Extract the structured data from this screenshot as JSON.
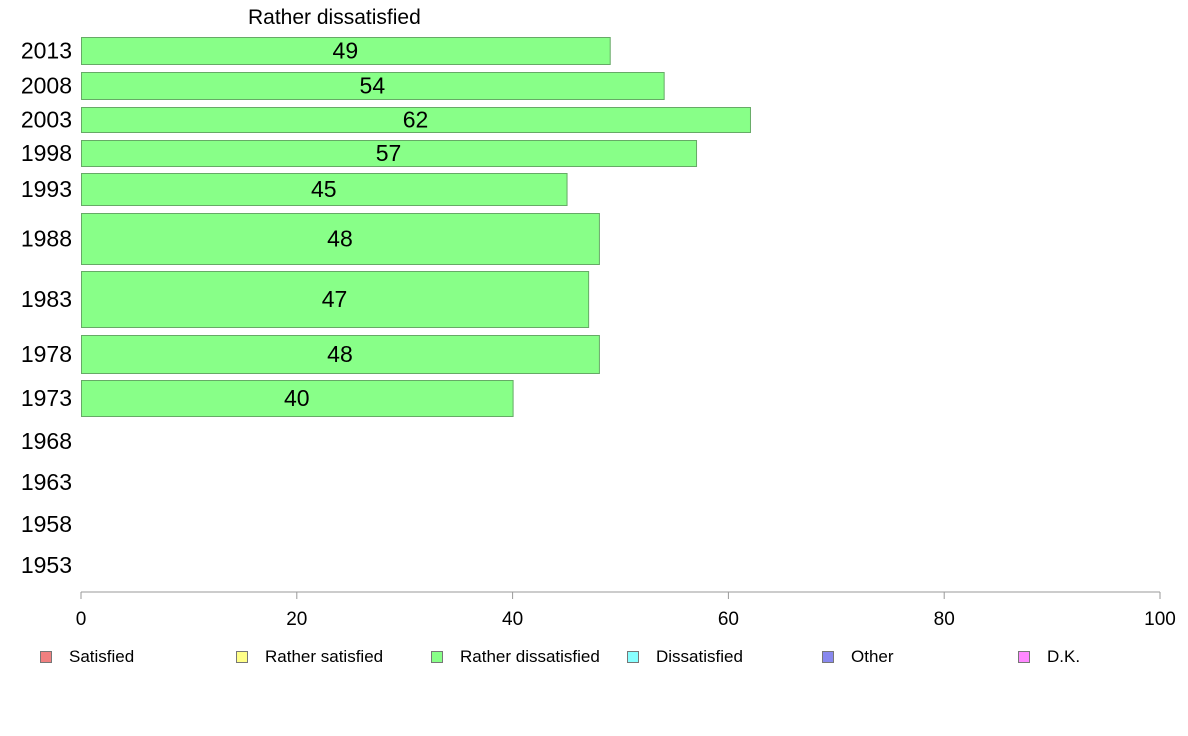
{
  "chart_data": {
    "type": "bar",
    "orientation": "horizontal",
    "title": "Rather dissatisfied",
    "categories": [
      "2013",
      "2008",
      "2003",
      "1998",
      "1993",
      "1988",
      "1983",
      "1978",
      "1973",
      "1968",
      "1963",
      "1958",
      "1953"
    ],
    "series": [
      {
        "name": "Rather dissatisfied",
        "color": "#88ff88",
        "values": [
          49,
          54,
          62,
          57,
          45,
          48,
          47,
          48,
          40,
          null,
          null,
          null,
          null
        ],
        "labels": [
          "49",
          "54",
          "62",
          "57",
          "45",
          "48",
          "47",
          "48",
          "40",
          "",
          "",
          "",
          ""
        ]
      }
    ],
    "xlim": [
      0,
      100
    ],
    "xticks": [
      0,
      20,
      40,
      60,
      80,
      100
    ],
    "xtick_labels": [
      "0",
      "20",
      "40",
      "60",
      "80",
      "100"
    ],
    "grid": false,
    "legend": {
      "position": "bottom",
      "items": [
        {
          "label": "Satisfied",
          "color": "#f08080"
        },
        {
          "label": "Rather satisfied",
          "color": "#ffff88"
        },
        {
          "label": "Rather dissatisfied",
          "color": "#88ff88"
        },
        {
          "label": "Dissatisfied",
          "color": "#88ffff"
        },
        {
          "label": "Other",
          "color": "#8888ee"
        },
        {
          "label": "D.K.",
          "color": "#ff88ff"
        }
      ]
    }
  }
}
